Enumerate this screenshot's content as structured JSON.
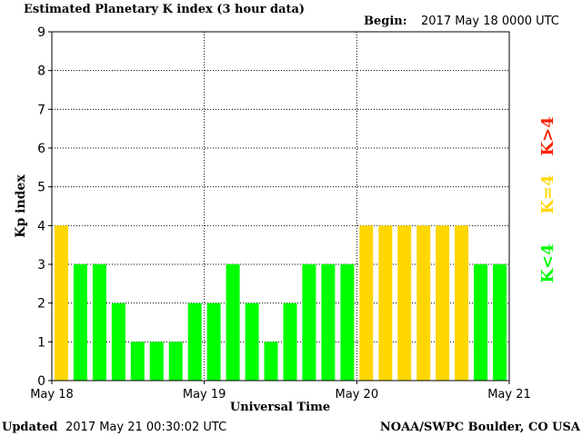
{
  "header": {
    "title": "Estimated Planetary K index (3 hour data)",
    "begin_label": "Begin:",
    "begin_value": "2017 May 18 0000 UTC"
  },
  "footer": {
    "updated_label": "Updated",
    "updated_value": "2017 May 21 00:30:02 UTC",
    "source": "NOAA/SWPC Boulder, CO USA"
  },
  "legend": {
    "k_greater": "K>4",
    "k_equal": "K=4",
    "k_less": "K<4"
  },
  "colors": {
    "green": "#00ff00",
    "yellow": "#ffd700",
    "red": "#ff2200"
  },
  "chart_data": {
    "type": "bar",
    "title": "Estimated Planetary K index (3 hour data)",
    "xlabel": "Universal Time",
    "ylabel": "Kp index",
    "ylim": [
      0,
      9
    ],
    "yticks": [
      0,
      1,
      2,
      3,
      4,
      5,
      6,
      7,
      8,
      9
    ],
    "xticks": [
      "May 18",
      "May 19",
      "May 20",
      "May 21"
    ],
    "values": [
      4,
      3,
      3,
      2,
      1,
      1,
      1,
      2,
      2,
      3,
      2,
      1,
      2,
      3,
      3,
      3,
      4,
      4,
      4,
      4,
      4,
      4,
      3,
      3
    ],
    "grid": true,
    "legend_position": "right"
  }
}
